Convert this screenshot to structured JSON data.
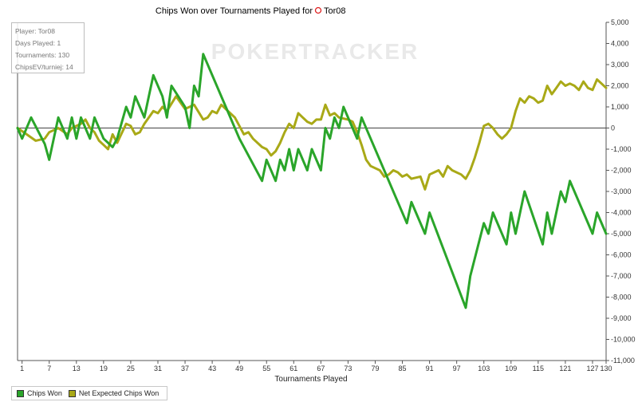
{
  "chart_data": {
    "type": "line",
    "title": "Chips Won over Tournaments Played for",
    "title_player": "Tor08",
    "xlabel": "Tournaments Played",
    "ylabel": "",
    "xlim": [
      0,
      130
    ],
    "ylim": [
      -11000,
      5000
    ],
    "x_ticks": [
      1,
      7,
      13,
      19,
      25,
      31,
      37,
      43,
      49,
      55,
      61,
      67,
      73,
      79,
      85,
      91,
      97,
      103,
      109,
      115,
      121,
      127,
      130
    ],
    "y_ticks": [
      5000,
      4000,
      3000,
      2000,
      1000,
      0,
      -1000,
      -2000,
      -3000,
      -4000,
      -5000,
      -6000,
      -7000,
      -8000,
      -9000,
      -10000,
      -11000
    ],
    "y_tick_labels": [
      "5,000",
      "4,000",
      "3,000",
      "2,000",
      "1,000",
      "0",
      "-1,000",
      "-2,000",
      "-3,000",
      "-4,000",
      "-5,000",
      "-6,000",
      "-7,000",
      "-8,000",
      "-9,000",
      "-10,000",
      "-11,000"
    ],
    "grid": false,
    "zero_line": true,
    "legend_position": "bottom-left",
    "series": [
      {
        "name": "Chips Won",
        "color": "#2aa52a",
        "points": [
          [
            0,
            0
          ],
          [
            1,
            -500
          ],
          [
            3,
            500
          ],
          [
            6,
            -750
          ],
          [
            7,
            -1500
          ],
          [
            9,
            500
          ],
          [
            11,
            -500
          ],
          [
            12,
            500
          ],
          [
            13,
            -500
          ],
          [
            14,
            500
          ],
          [
            16,
            -500
          ],
          [
            17,
            500
          ],
          [
            19,
            -500
          ],
          [
            21,
            -900
          ],
          [
            22,
            -500
          ],
          [
            24,
            1000
          ],
          [
            25,
            500
          ],
          [
            26,
            1500
          ],
          [
            27,
            1000
          ],
          [
            28,
            500
          ],
          [
            29,
            1500
          ],
          [
            30,
            2500
          ],
          [
            32,
            1500
          ],
          [
            33,
            500
          ],
          [
            34,
            2000
          ],
          [
            37,
            1000
          ],
          [
            38,
            0
          ],
          [
            39,
            2000
          ],
          [
            40,
            1500
          ],
          [
            41,
            3500
          ],
          [
            49,
            -500
          ],
          [
            54,
            -2500
          ],
          [
            55,
            -1500
          ],
          [
            57,
            -2500
          ],
          [
            58,
            -1500
          ],
          [
            59,
            -2000
          ],
          [
            60,
            -1000
          ],
          [
            61,
            -2000
          ],
          [
            62,
            -1000
          ],
          [
            64,
            -2000
          ],
          [
            65,
            -1000
          ],
          [
            67,
            -2000
          ],
          [
            68,
            0
          ],
          [
            69,
            -500
          ],
          [
            70,
            500
          ],
          [
            71,
            0
          ],
          [
            72,
            1000
          ],
          [
            74,
            0
          ],
          [
            75,
            -500
          ],
          [
            76,
            500
          ],
          [
            82,
            -2500
          ],
          [
            86,
            -4500
          ],
          [
            87,
            -3500
          ],
          [
            90,
            -5000
          ],
          [
            91,
            -4000
          ],
          [
            99,
            -8500
          ],
          [
            100,
            -7000
          ],
          [
            103,
            -4500
          ],
          [
            104,
            -5000
          ],
          [
            105,
            -4000
          ],
          [
            108,
            -5500
          ],
          [
            109,
            -4000
          ],
          [
            110,
            -5000
          ],
          [
            112,
            -3000
          ],
          [
            116,
            -5500
          ],
          [
            117,
            -4000
          ],
          [
            118,
            -5000
          ],
          [
            120,
            -3000
          ],
          [
            121,
            -3500
          ],
          [
            122,
            -2500
          ],
          [
            127,
            -5000
          ],
          [
            128,
            -4000
          ],
          [
            130,
            -5000
          ]
        ]
      },
      {
        "name": "Net Expected Chips Won",
        "color": "#a9a917",
        "points": [
          [
            0,
            0
          ],
          [
            2,
            -300
          ],
          [
            4,
            -600
          ],
          [
            6,
            -500
          ],
          [
            7,
            -200
          ],
          [
            9,
            0
          ],
          [
            11,
            -300
          ],
          [
            12,
            0
          ],
          [
            14,
            200
          ],
          [
            15,
            400
          ],
          [
            16,
            0
          ],
          [
            17,
            -200
          ],
          [
            18,
            -600
          ],
          [
            19,
            -800
          ],
          [
            20,
            -1000
          ],
          [
            21,
            -300
          ],
          [
            22,
            -700
          ],
          [
            24,
            200
          ],
          [
            25,
            100
          ],
          [
            26,
            -300
          ],
          [
            27,
            -200
          ],
          [
            28,
            200
          ],
          [
            30,
            800
          ],
          [
            31,
            700
          ],
          [
            32,
            1000
          ],
          [
            33,
            800
          ],
          [
            35,
            1500
          ],
          [
            36,
            1200
          ],
          [
            37,
            900
          ],
          [
            38,
            1000
          ],
          [
            39,
            1100
          ],
          [
            41,
            400
          ],
          [
            42,
            500
          ],
          [
            43,
            800
          ],
          [
            44,
            700
          ],
          [
            45,
            1100
          ],
          [
            46,
            900
          ],
          [
            48,
            500
          ],
          [
            49,
            100
          ],
          [
            50,
            -300
          ],
          [
            51,
            -200
          ],
          [
            52,
            -500
          ],
          [
            54,
            -900
          ],
          [
            55,
            -1000
          ],
          [
            56,
            -1300
          ],
          [
            57,
            -1100
          ],
          [
            58,
            -700
          ],
          [
            59,
            -200
          ],
          [
            60,
            200
          ],
          [
            61,
            0
          ],
          [
            62,
            700
          ],
          [
            63,
            500
          ],
          [
            64,
            300
          ],
          [
            65,
            200
          ],
          [
            66,
            400
          ],
          [
            67,
            400
          ],
          [
            68,
            1100
          ],
          [
            69,
            600
          ],
          [
            70,
            700
          ],
          [
            71,
            500
          ],
          [
            73,
            400
          ],
          [
            74,
            300
          ],
          [
            75,
            -200
          ],
          [
            76,
            -800
          ],
          [
            77,
            -1500
          ],
          [
            78,
            -1800
          ],
          [
            80,
            -2000
          ],
          [
            81,
            -2300
          ],
          [
            82,
            -2200
          ],
          [
            83,
            -2000
          ],
          [
            84,
            -2100
          ],
          [
            85,
            -2300
          ],
          [
            86,
            -2200
          ],
          [
            87,
            -2400
          ],
          [
            89,
            -2300
          ],
          [
            90,
            -2900
          ],
          [
            91,
            -2200
          ],
          [
            92,
            -2100
          ],
          [
            93,
            -2000
          ],
          [
            94,
            -2300
          ],
          [
            95,
            -1800
          ],
          [
            96,
            -2000
          ],
          [
            98,
            -2200
          ],
          [
            99,
            -2400
          ],
          [
            100,
            -2000
          ],
          [
            101,
            -1400
          ],
          [
            102,
            -700
          ],
          [
            103,
            100
          ],
          [
            104,
            200
          ],
          [
            105,
            0
          ],
          [
            106,
            -300
          ],
          [
            107,
            -500
          ],
          [
            108,
            -300
          ],
          [
            109,
            0
          ],
          [
            110,
            800
          ],
          [
            111,
            1400
          ],
          [
            112,
            1200
          ],
          [
            113,
            1500
          ],
          [
            114,
            1400
          ],
          [
            115,
            1200
          ],
          [
            116,
            1300
          ],
          [
            117,
            2000
          ],
          [
            118,
            1600
          ],
          [
            119,
            1900
          ],
          [
            120,
            2200
          ],
          [
            121,
            2000
          ],
          [
            122,
            2100
          ],
          [
            123,
            2000
          ],
          [
            124,
            1800
          ],
          [
            125,
            2200
          ],
          [
            126,
            1900
          ],
          [
            127,
            1800
          ],
          [
            128,
            2300
          ],
          [
            129,
            2100
          ],
          [
            130,
            1900
          ]
        ]
      }
    ],
    "info_box": [
      {
        "label": "Player",
        "value": "Tor08"
      },
      {
        "label": "Days Played",
        "value": "1"
      },
      {
        "label": "Tournaments",
        "value": "130"
      },
      {
        "label": "ChipsEV/turniej",
        "value": "14"
      }
    ],
    "watermark": "POKERTRACKER"
  }
}
